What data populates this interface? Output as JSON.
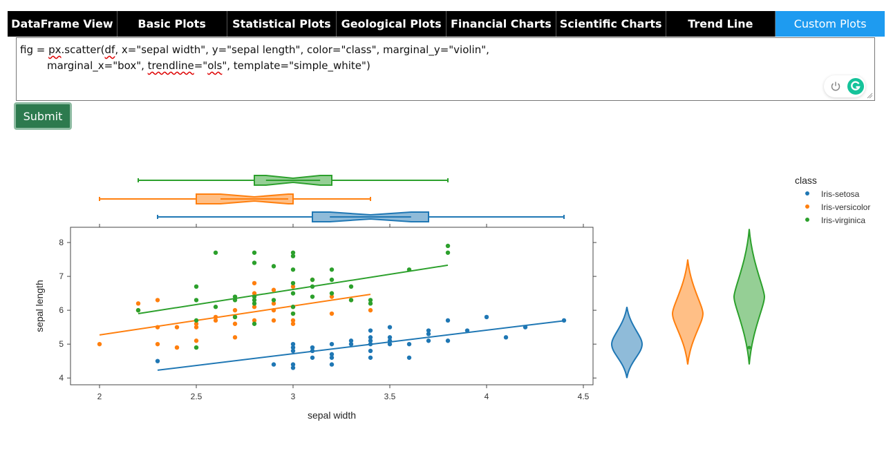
{
  "tabs": [
    {
      "label": "DataFrame View"
    },
    {
      "label": "Basic Plots"
    },
    {
      "label": "Statistical Plots"
    },
    {
      "label": "Geological Plots"
    },
    {
      "label": "Financial Charts"
    },
    {
      "label": "Scientific Charts"
    },
    {
      "label": "Trend Line"
    },
    {
      "label": "Custom Plots"
    }
  ],
  "editor": {
    "line1_a": "fig = ",
    "line1_b": "px",
    "line1_c": ".scatter(",
    "line1_d": "df",
    "line1_e": ", x=\"sepal width\", y=\"sepal length\", color=\"class\", marginal_y=\"violin\",",
    "line2_a": "marginal_x=\"box\", ",
    "line2_b": "trendline",
    "line2_c": "=\"",
    "line2_d": "ols",
    "line2_e": "\", template=\"simple_white\")"
  },
  "submit_label": "Submit",
  "colors": {
    "setosa": "#1f77b4",
    "versicolor": "#ff7f0e",
    "virginica": "#2ca02c"
  },
  "chart_data": {
    "type": "scatter",
    "xlabel": "sepal width",
    "ylabel": "sepal length",
    "xlim": [
      1.85,
      4.55
    ],
    "ylim": [
      3.8,
      8.45
    ],
    "xticks": [
      2,
      2.5,
      3,
      3.5,
      4,
      4.5
    ],
    "yticks": [
      4,
      5,
      6,
      7,
      8
    ],
    "xtick_labels": [
      "2",
      "2.5",
      "3",
      "3.5",
      "4",
      "4.5"
    ],
    "ytick_labels": [
      "4",
      "5",
      "6",
      "7",
      "8"
    ],
    "legend_title": "class",
    "series": [
      {
        "name": "Iris-setosa",
        "points": [
          [
            2.3,
            4.5
          ],
          [
            2.9,
            4.4
          ],
          [
            3.0,
            4.4
          ],
          [
            3.0,
            4.3
          ],
          [
            3.2,
            4.4
          ],
          [
            3.0,
            4.8
          ],
          [
            3.0,
            4.9
          ],
          [
            3.0,
            5.0
          ],
          [
            3.1,
            4.9
          ],
          [
            3.1,
            4.8
          ],
          [
            3.1,
            4.6
          ],
          [
            3.2,
            4.7
          ],
          [
            3.2,
            4.6
          ],
          [
            3.2,
            5.0
          ],
          [
            3.3,
            5.0
          ],
          [
            3.3,
            5.1
          ],
          [
            3.4,
            4.8
          ],
          [
            3.4,
            5.0
          ],
          [
            3.4,
            5.1
          ],
          [
            3.4,
            5.2
          ],
          [
            3.4,
            5.4
          ],
          [
            3.4,
            4.6
          ],
          [
            3.5,
            5.0
          ],
          [
            3.5,
            5.1
          ],
          [
            3.5,
            5.2
          ],
          [
            3.5,
            5.5
          ],
          [
            3.6,
            4.6
          ],
          [
            3.6,
            5.0
          ],
          [
            3.7,
            5.1
          ],
          [
            3.7,
            5.3
          ],
          [
            3.7,
            5.4
          ],
          [
            3.8,
            5.1
          ],
          [
            3.8,
            5.7
          ],
          [
            3.9,
            5.4
          ],
          [
            4.0,
            5.8
          ],
          [
            4.1,
            5.2
          ],
          [
            4.2,
            5.5
          ],
          [
            4.4,
            5.7
          ]
        ],
        "trend": [
          [
            2.3,
            4.23
          ],
          [
            4.4,
            5.69
          ]
        ],
        "box": {
          "min": 2.3,
          "q1": 3.1,
          "median": 3.4,
          "q3": 3.7,
          "max": 4.4
        },
        "violin": {
          "min": 4.0,
          "max": 6.1,
          "peak": 5.0
        }
      },
      {
        "name": "Iris-versicolor",
        "points": [
          [
            2.0,
            5.0
          ],
          [
            2.2,
            6.2
          ],
          [
            2.2,
            6.0
          ],
          [
            2.3,
            6.3
          ],
          [
            2.3,
            5.5
          ],
          [
            2.3,
            5.0
          ],
          [
            2.4,
            5.5
          ],
          [
            2.4,
            4.9
          ],
          [
            2.5,
            5.1
          ],
          [
            2.5,
            5.6
          ],
          [
            2.5,
            5.5
          ],
          [
            2.6,
            5.8
          ],
          [
            2.6,
            5.7
          ],
          [
            2.7,
            5.8
          ],
          [
            2.7,
            6.0
          ],
          [
            2.7,
            5.6
          ],
          [
            2.7,
            5.2
          ],
          [
            2.8,
            6.8
          ],
          [
            2.8,
            6.5
          ],
          [
            2.8,
            6.1
          ],
          [
            2.8,
            5.7
          ],
          [
            2.9,
            6.6
          ],
          [
            2.9,
            6.2
          ],
          [
            2.9,
            6.0
          ],
          [
            2.9,
            5.7
          ],
          [
            3.0,
            6.7
          ],
          [
            3.0,
            6.1
          ],
          [
            3.0,
            5.9
          ],
          [
            3.0,
            5.6
          ],
          [
            3.0,
            5.7
          ],
          [
            3.1,
            6.9
          ],
          [
            3.2,
            5.9
          ],
          [
            3.2,
            6.4
          ],
          [
            3.3,
            6.3
          ],
          [
            3.4,
            6.0
          ]
        ],
        "trend": [
          [
            2.0,
            5.27
          ],
          [
            3.4,
            6.47
          ]
        ],
        "box": {
          "min": 2.0,
          "q1": 2.5,
          "median": 2.8,
          "q3": 3.0,
          "max": 3.4
        },
        "violin": {
          "min": 4.4,
          "max": 7.5,
          "peak": 5.9
        }
      },
      {
        "name": "Iris-virginica",
        "points": [
          [
            2.2,
            6.0
          ],
          [
            2.5,
            6.7
          ],
          [
            2.5,
            6.3
          ],
          [
            2.5,
            5.7
          ],
          [
            2.5,
            4.9
          ],
          [
            2.6,
            7.7
          ],
          [
            2.6,
            6.1
          ],
          [
            2.7,
            6.4
          ],
          [
            2.7,
            6.3
          ],
          [
            2.7,
            5.8
          ],
          [
            2.8,
            7.7
          ],
          [
            2.8,
            7.4
          ],
          [
            2.8,
            6.4
          ],
          [
            2.8,
            6.3
          ],
          [
            2.8,
            6.2
          ],
          [
            2.8,
            5.6
          ],
          [
            2.9,
            7.3
          ],
          [
            2.9,
            6.3
          ],
          [
            3.0,
            7.7
          ],
          [
            3.0,
            7.6
          ],
          [
            3.0,
            7.2
          ],
          [
            3.0,
            6.8
          ],
          [
            3.0,
            6.5
          ],
          [
            3.0,
            6.1
          ],
          [
            3.0,
            5.9
          ],
          [
            3.1,
            6.9
          ],
          [
            3.1,
            6.7
          ],
          [
            3.1,
            6.4
          ],
          [
            3.2,
            7.2
          ],
          [
            3.2,
            6.9
          ],
          [
            3.2,
            6.5
          ],
          [
            3.3,
            6.7
          ],
          [
            3.3,
            6.3
          ],
          [
            3.4,
            6.3
          ],
          [
            3.4,
            6.2
          ],
          [
            3.6,
            7.2
          ],
          [
            3.8,
            7.7
          ],
          [
            3.8,
            7.9
          ]
        ],
        "trend": [
          [
            2.2,
            5.9
          ],
          [
            3.8,
            7.33
          ]
        ],
        "box": {
          "min": 2.2,
          "q1": 2.8,
          "median": 3.0,
          "q3": 3.2,
          "max": 3.8
        },
        "violin": {
          "min": 4.4,
          "max": 8.4,
          "peak": 6.4
        }
      }
    ]
  }
}
